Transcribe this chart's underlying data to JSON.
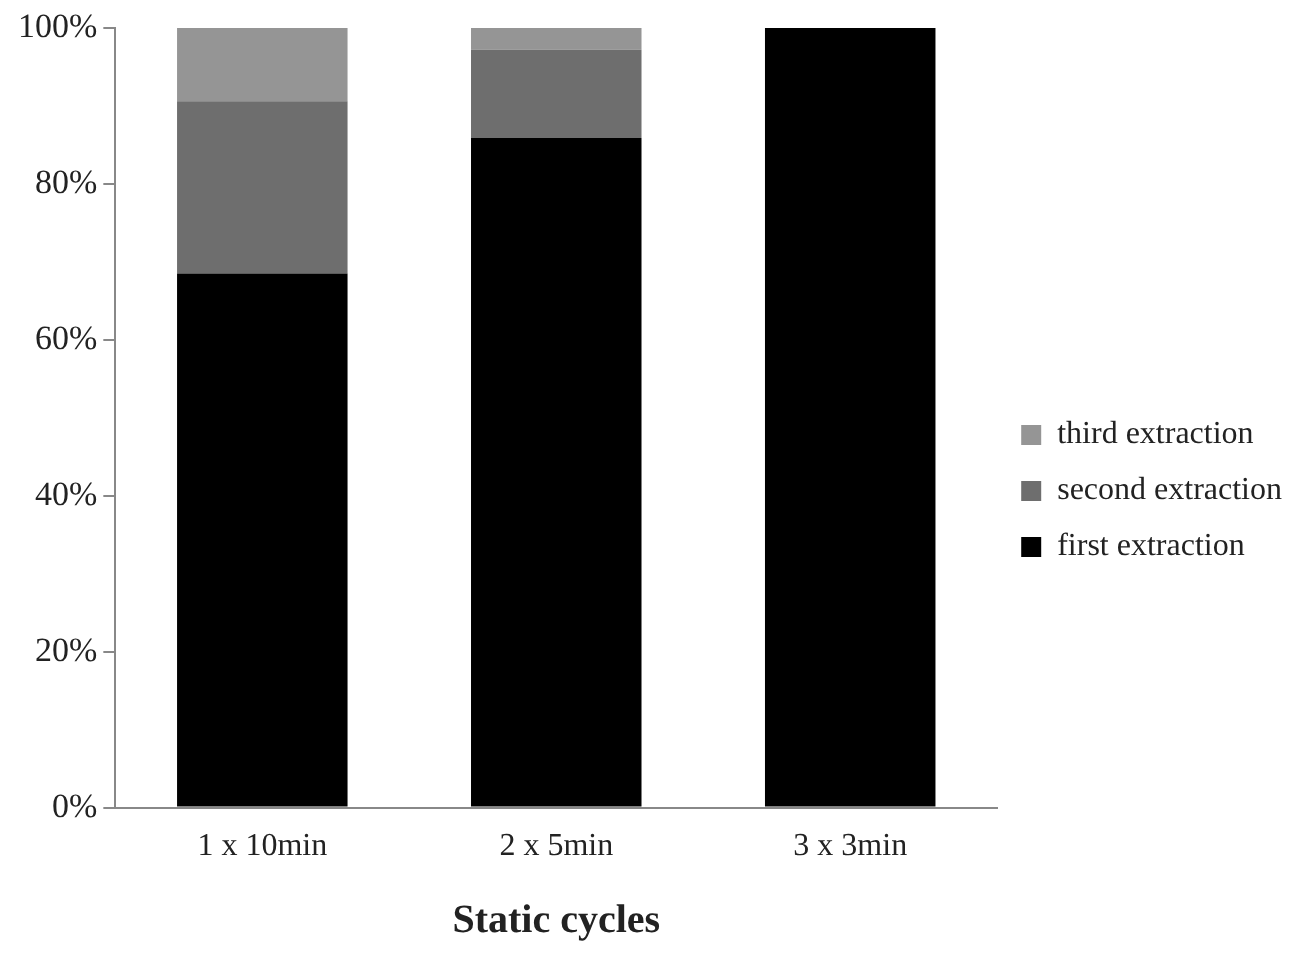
{
  "chart_data": {
    "type": "bar",
    "stacked": true,
    "xlabel": "Static cycles",
    "categories": [
      "1 x 10min",
      "2 x 5min",
      "3 x 3min"
    ],
    "series": [
      {
        "name": "first extraction",
        "color": "#000000",
        "values": [
          68.5,
          85.9,
          100
        ]
      },
      {
        "name": "second extraction",
        "color": "#6e6e6e",
        "values": [
          22.1,
          11.3,
          0
        ]
      },
      {
        "name": "third extraction",
        "color": "#959595",
        "values": [
          9.4,
          2.8,
          0
        ]
      }
    ],
    "ylim": [
      0,
      100
    ],
    "yticks": [
      {
        "value": 0,
        "label": "0%"
      },
      {
        "value": 20,
        "label": "20%"
      },
      {
        "value": 40,
        "label": "40%"
      },
      {
        "value": 60,
        "label": "60%"
      },
      {
        "value": 80,
        "label": "80%"
      },
      {
        "value": 100,
        "label": "100%"
      }
    ],
    "grid": false,
    "legend": "right"
  }
}
